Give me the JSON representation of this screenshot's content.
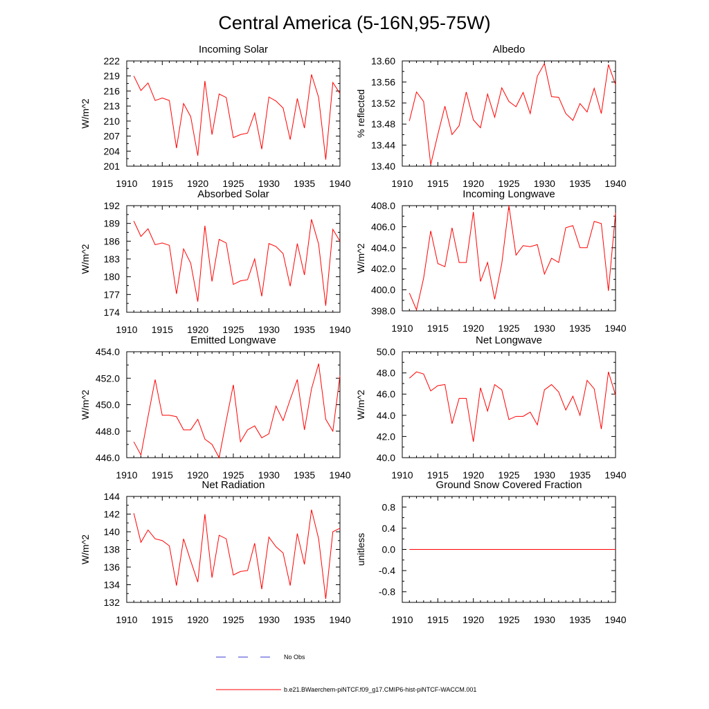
{
  "figure": {
    "title": "Central America (5-16N,95-75W)"
  },
  "legend": {
    "entries": [
      {
        "label": "No Obs",
        "color": "#3a3ad0",
        "style": "dashed"
      },
      {
        "label": "b.e21.BWaerchem-piNTCF.f09_g17.CMIP6-hist-piNTCF-WACCM.001",
        "color": "#ff0000",
        "style": "solid"
      }
    ]
  },
  "chart_data": [
    {
      "type": "line",
      "title": "Incoming Solar",
      "ylabel": "W/m^2",
      "xlim": [
        1910,
        1940
      ],
      "ylim": [
        201,
        222
      ],
      "xticks": [
        "1910",
        "1915",
        "1920",
        "1925",
        "1930",
        "1935",
        "1940"
      ],
      "yticks": [
        "201",
        "204",
        "207",
        "210",
        "213",
        "216",
        "219",
        "222"
      ],
      "color": "#ff0000",
      "x": [
        1911,
        1912,
        1913,
        1914,
        1915,
        1916,
        1917,
        1918,
        1919,
        1920,
        1921,
        1922,
        1923,
        1924,
        1925,
        1926,
        1927,
        1928,
        1929,
        1930,
        1931,
        1932,
        1933,
        1934,
        1935,
        1936,
        1937,
        1938,
        1939,
        1940
      ],
      "values": [
        219.0,
        216.1,
        217.6,
        214.1,
        214.6,
        214.1,
        204.6,
        213.5,
        210.9,
        203.1,
        218.0,
        207.3,
        215.4,
        214.7,
        206.7,
        207.3,
        207.6,
        211.6,
        204.4,
        214.8,
        214.0,
        212.6,
        206.3,
        214.5,
        208.6,
        219.3,
        214.7,
        202.3,
        217.7,
        215.5
      ]
    },
    {
      "type": "line",
      "title": "Albedo",
      "ylabel": "% reflected",
      "xlim": [
        1910,
        1940
      ],
      "ylim": [
        13.4,
        13.6
      ],
      "xticks": [
        "1910",
        "1915",
        "1920",
        "1925",
        "1930",
        "1935",
        "1940"
      ],
      "yticks": [
        "13.40",
        "13.44",
        "13.48",
        "13.52",
        "13.56",
        "13.60"
      ],
      "color": "#ff0000",
      "x": [
        1911,
        1912,
        1913,
        1914,
        1915,
        1916,
        1917,
        1918,
        1919,
        1920,
        1921,
        1922,
        1923,
        1924,
        1925,
        1926,
        1927,
        1928,
        1929,
        1930,
        1931,
        1932,
        1933,
        1934,
        1935,
        1936,
        1937,
        1938,
        1939,
        1940
      ],
      "values": [
        13.486,
        13.541,
        13.523,
        13.403,
        13.46,
        13.514,
        13.46,
        13.477,
        13.541,
        13.488,
        13.473,
        13.537,
        13.493,
        13.549,
        13.523,
        13.513,
        13.54,
        13.5,
        13.571,
        13.595,
        13.532,
        13.531,
        13.5,
        13.487,
        13.519,
        13.503,
        13.548,
        13.5,
        13.593,
        13.555
      ]
    },
    {
      "type": "line",
      "title": "Absorbed Solar",
      "ylabel": "W/m^2",
      "xlim": [
        1910,
        1940
      ],
      "ylim": [
        174,
        192
      ],
      "xticks": [
        "1910",
        "1915",
        "1920",
        "1925",
        "1930",
        "1935",
        "1940"
      ],
      "yticks": [
        "174",
        "177",
        "180",
        "183",
        "186",
        "189",
        "192"
      ],
      "color": "#ff0000",
      "x": [
        1911,
        1912,
        1913,
        1914,
        1915,
        1916,
        1917,
        1918,
        1919,
        1920,
        1921,
        1922,
        1923,
        1924,
        1925,
        1926,
        1927,
        1928,
        1929,
        1930,
        1931,
        1932,
        1933,
        1934,
        1935,
        1936,
        1937,
        1938,
        1939,
        1940
      ],
      "values": [
        189.4,
        186.8,
        188.1,
        185.4,
        185.7,
        185.3,
        177.1,
        184.7,
        182.3,
        175.8,
        188.6,
        179.2,
        186.3,
        185.7,
        178.7,
        179.3,
        179.5,
        183.0,
        176.7,
        185.6,
        185.1,
        183.9,
        178.4,
        185.6,
        180.3,
        189.7,
        185.5,
        175.1,
        188.0,
        186.0
      ]
    },
    {
      "type": "line",
      "title": "Incoming Longwave",
      "ylabel": "W/m^2",
      "xlim": [
        1910,
        1940
      ],
      "ylim": [
        398.0,
        408.0
      ],
      "xticks": [
        "1910",
        "1915",
        "1920",
        "1925",
        "1930",
        "1935",
        "1940"
      ],
      "yticks": [
        "398.0",
        "400.0",
        "402.0",
        "404.0",
        "406.0",
        "408.0"
      ],
      "color": "#ff0000",
      "x": [
        1911,
        1912,
        1913,
        1914,
        1915,
        1916,
        1917,
        1918,
        1919,
        1920,
        1921,
        1922,
        1923,
        1924,
        1925,
        1926,
        1927,
        1928,
        1929,
        1930,
        1931,
        1932,
        1933,
        1934,
        1935,
        1936,
        1937,
        1938,
        1939,
        1940
      ],
      "values": [
        399.7,
        398.1,
        401.1,
        405.6,
        402.5,
        402.2,
        405.9,
        402.6,
        402.6,
        407.4,
        400.8,
        402.6,
        399.1,
        402.5,
        408.0,
        403.3,
        404.2,
        404.1,
        404.3,
        401.5,
        403.0,
        402.6,
        405.9,
        406.1,
        404.0,
        404.0,
        406.5,
        406.3,
        399.9,
        407.3
      ]
    },
    {
      "type": "line",
      "title": "Emitted Longwave",
      "ylabel": "W/m^2",
      "xlim": [
        1910,
        1940
      ],
      "ylim": [
        446.0,
        454.0
      ],
      "xticks": [
        "1910",
        "1915",
        "1920",
        "1925",
        "1930",
        "1935",
        "1940"
      ],
      "yticks": [
        "446.0",
        "448.0",
        "450.0",
        "452.0",
        "454.0"
      ],
      "color": "#ff0000",
      "x": [
        1911,
        1912,
        1913,
        1914,
        1915,
        1916,
        1917,
        1918,
        1919,
        1920,
        1921,
        1922,
        1923,
        1924,
        1925,
        1926,
        1927,
        1928,
        1929,
        1930,
        1931,
        1932,
        1933,
        1934,
        1935,
        1936,
        1937,
        1938,
        1939,
        1940
      ],
      "values": [
        447.2,
        446.2,
        449.1,
        451.9,
        449.2,
        449.2,
        449.1,
        448.1,
        448.1,
        448.9,
        447.4,
        447.0,
        446.0,
        448.8,
        451.5,
        447.2,
        448.1,
        448.4,
        447.5,
        447.8,
        449.9,
        448.8,
        450.4,
        451.9,
        448.1,
        451.2,
        453.1,
        448.9,
        448.0,
        452.2
      ]
    },
    {
      "type": "line",
      "title": "Net Longwave",
      "ylabel": "W/m^2",
      "xlim": [
        1910,
        1940
      ],
      "ylim": [
        40.0,
        50.0
      ],
      "xticks": [
        "1910",
        "1915",
        "1920",
        "1925",
        "1930",
        "1935",
        "1940"
      ],
      "yticks": [
        "40.0",
        "42.0",
        "44.0",
        "46.0",
        "48.0",
        "50.0"
      ],
      "color": "#ff0000",
      "x": [
        1911,
        1912,
        1913,
        1914,
        1915,
        1916,
        1917,
        1918,
        1919,
        1920,
        1921,
        1922,
        1923,
        1924,
        1925,
        1926,
        1927,
        1928,
        1929,
        1930,
        1931,
        1932,
        1933,
        1934,
        1935,
        1936,
        1937,
        1938,
        1939,
        1940
      ],
      "values": [
        47.5,
        48.1,
        47.9,
        46.3,
        46.8,
        46.9,
        43.2,
        45.6,
        45.6,
        41.5,
        46.6,
        44.4,
        46.9,
        46.4,
        43.6,
        43.9,
        43.9,
        44.3,
        43.1,
        46.4,
        46.9,
        46.2,
        44.5,
        45.8,
        44.0,
        47.3,
        46.5,
        42.7,
        48.1,
        45.9
      ]
    },
    {
      "type": "line",
      "title": "Net Radiation",
      "ylabel": "W/m^2",
      "xlim": [
        1910,
        1940
      ],
      "ylim": [
        132,
        144
      ],
      "xticks": [
        "1910",
        "1915",
        "1920",
        "1925",
        "1930",
        "1935",
        "1940"
      ],
      "yticks": [
        "132",
        "134",
        "136",
        "138",
        "140",
        "142",
        "144"
      ],
      "color": "#ff0000",
      "x": [
        1911,
        1912,
        1913,
        1914,
        1915,
        1916,
        1917,
        1918,
        1919,
        1920,
        1921,
        1922,
        1923,
        1924,
        1925,
        1926,
        1927,
        1928,
        1929,
        1930,
        1931,
        1932,
        1933,
        1934,
        1935,
        1936,
        1937,
        1938,
        1939,
        1940
      ],
      "values": [
        142.1,
        138.8,
        140.2,
        139.2,
        139.0,
        138.4,
        133.9,
        139.2,
        136.7,
        134.3,
        142.0,
        134.8,
        139.6,
        139.2,
        135.1,
        135.5,
        135.6,
        138.7,
        133.5,
        139.4,
        138.3,
        137.6,
        133.9,
        139.8,
        136.3,
        142.5,
        139.2,
        132.4,
        140.0,
        140.4
      ]
    },
    {
      "type": "line",
      "title": "Ground Snow Covered Fraction",
      "ylabel": "unitless",
      "xlim": [
        1910,
        1940
      ],
      "ylim": [
        -1.0,
        1.0
      ],
      "xticks": [
        "1910",
        "1915",
        "1920",
        "1925",
        "1930",
        "1935",
        "1940"
      ],
      "yticks": [
        "-0.8",
        "-0.4",
        "0.0",
        "0.4",
        "0.8"
      ],
      "ytick_values": [
        -0.8,
        -0.4,
        0.0,
        0.4,
        0.8
      ],
      "color": "#ff0000",
      "x": [
        1911,
        1940
      ],
      "values": [
        0.0,
        0.0
      ]
    }
  ]
}
